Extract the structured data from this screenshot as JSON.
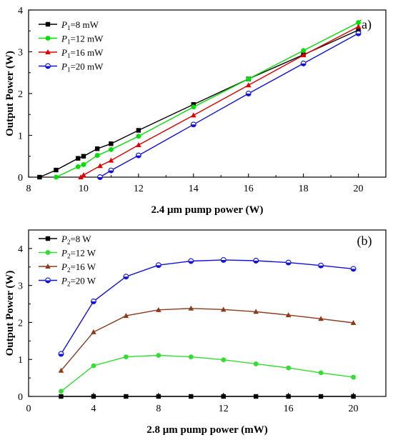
{
  "chart_data": [
    {
      "type": "line",
      "panel_label": "(a)",
      "xlabel": "2.4 μm pump power (W)",
      "ylabel": "Output Power (W)",
      "xlim": [
        8,
        21
      ],
      "ylim": [
        0,
        4
      ],
      "xticks": [
        "8",
        "10",
        "12",
        "14",
        "16",
        "18",
        "20"
      ],
      "yticks": [
        "0",
        "1",
        "2",
        "3",
        "4"
      ],
      "legend_position": "top-left",
      "series": [
        {
          "name_var": "P",
          "name_sub": "1",
          "name_rest": "=8 mW",
          "color": "#000000",
          "marker": "square",
          "x": [
            8.4,
            9.0,
            9.8,
            10.0,
            10.5,
            11.0,
            12.0,
            14.0,
            16.0,
            18.0,
            20.0
          ],
          "y": [
            0.0,
            0.17,
            0.45,
            0.5,
            0.68,
            0.8,
            1.12,
            1.74,
            2.35,
            2.93,
            3.52
          ]
        },
        {
          "name_var": "P",
          "name_sub": "1",
          "name_rest": "=12 mW",
          "color": "#00e000",
          "marker": "circle",
          "x": [
            9.0,
            9.8,
            10.0,
            10.5,
            11.0,
            12.0,
            14.0,
            16.0,
            18.0,
            20.0
          ],
          "y": [
            0.0,
            0.25,
            0.3,
            0.52,
            0.66,
            0.98,
            1.68,
            2.35,
            3.03,
            3.7
          ]
        },
        {
          "name_var": "P",
          "name_sub": "1",
          "name_rest": "=16 mW",
          "color": "#e00000",
          "marker": "triangle",
          "x": [
            9.9,
            10.0,
            10.6,
            11.0,
            12.0,
            14.0,
            16.0,
            18.0,
            20.0
          ],
          "y": [
            0.0,
            0.05,
            0.27,
            0.4,
            0.77,
            1.48,
            2.2,
            2.92,
            3.6
          ]
        },
        {
          "name_var": "P",
          "name_sub": "1",
          "name_rest": "=20 mW",
          "color": "#1010e0",
          "marker": "halfcircle",
          "x": [
            10.6,
            11.0,
            12.0,
            14.0,
            16.0,
            18.0,
            20.0
          ],
          "y": [
            0.0,
            0.16,
            0.52,
            1.26,
            2.0,
            2.72,
            3.44
          ]
        }
      ]
    },
    {
      "type": "line",
      "panel_label": "(b)",
      "xlabel": "2.8 μm pump power (mW)",
      "ylabel": "Output Power (W)",
      "xlim": [
        0,
        22
      ],
      "ylim": [
        0,
        4.5
      ],
      "xticks": [
        "0",
        "4",
        "8",
        "12",
        "16",
        "20"
      ],
      "yticks": [
        "0",
        "1",
        "2",
        "3",
        "4"
      ],
      "legend_position": "top-left",
      "series": [
        {
          "name_var": "P",
          "name_sub": "2",
          "name_rest": "=8 W",
          "color": "#000000",
          "marker": "square",
          "x": [
            2,
            4,
            6,
            8,
            10,
            12,
            14,
            16,
            18,
            20
          ],
          "y": [
            0.0,
            0.0,
            0.0,
            0.0,
            0.0,
            0.0,
            0.0,
            0.0,
            0.0,
            0.0
          ]
        },
        {
          "name_var": "P",
          "name_sub": "2",
          "name_rest": "=12 W",
          "color": "#33dd33",
          "marker": "circle",
          "x": [
            2,
            4,
            6,
            8,
            10,
            12,
            14,
            16,
            18,
            20
          ],
          "y": [
            0.14,
            0.83,
            1.07,
            1.11,
            1.07,
            0.99,
            0.88,
            0.77,
            0.64,
            0.52
          ]
        },
        {
          "name_var": "P",
          "name_sub": "2",
          "name_rest": "=16 W",
          "color": "#8b3a1a",
          "marker": "triangle",
          "x": [
            2,
            4,
            6,
            8,
            10,
            12,
            14,
            16,
            18,
            20
          ],
          "y": [
            0.7,
            1.74,
            2.18,
            2.34,
            2.38,
            2.35,
            2.29,
            2.2,
            2.1,
            1.99
          ]
        },
        {
          "name_var": "P",
          "name_sub": "2",
          "name_rest": "=20 W",
          "color": "#1010e0",
          "marker": "halfcircle",
          "x": [
            2,
            4,
            6,
            8,
            10,
            12,
            14,
            16,
            18,
            20
          ],
          "y": [
            1.15,
            2.57,
            3.24,
            3.55,
            3.66,
            3.69,
            3.67,
            3.62,
            3.54,
            3.45
          ]
        }
      ]
    }
  ]
}
